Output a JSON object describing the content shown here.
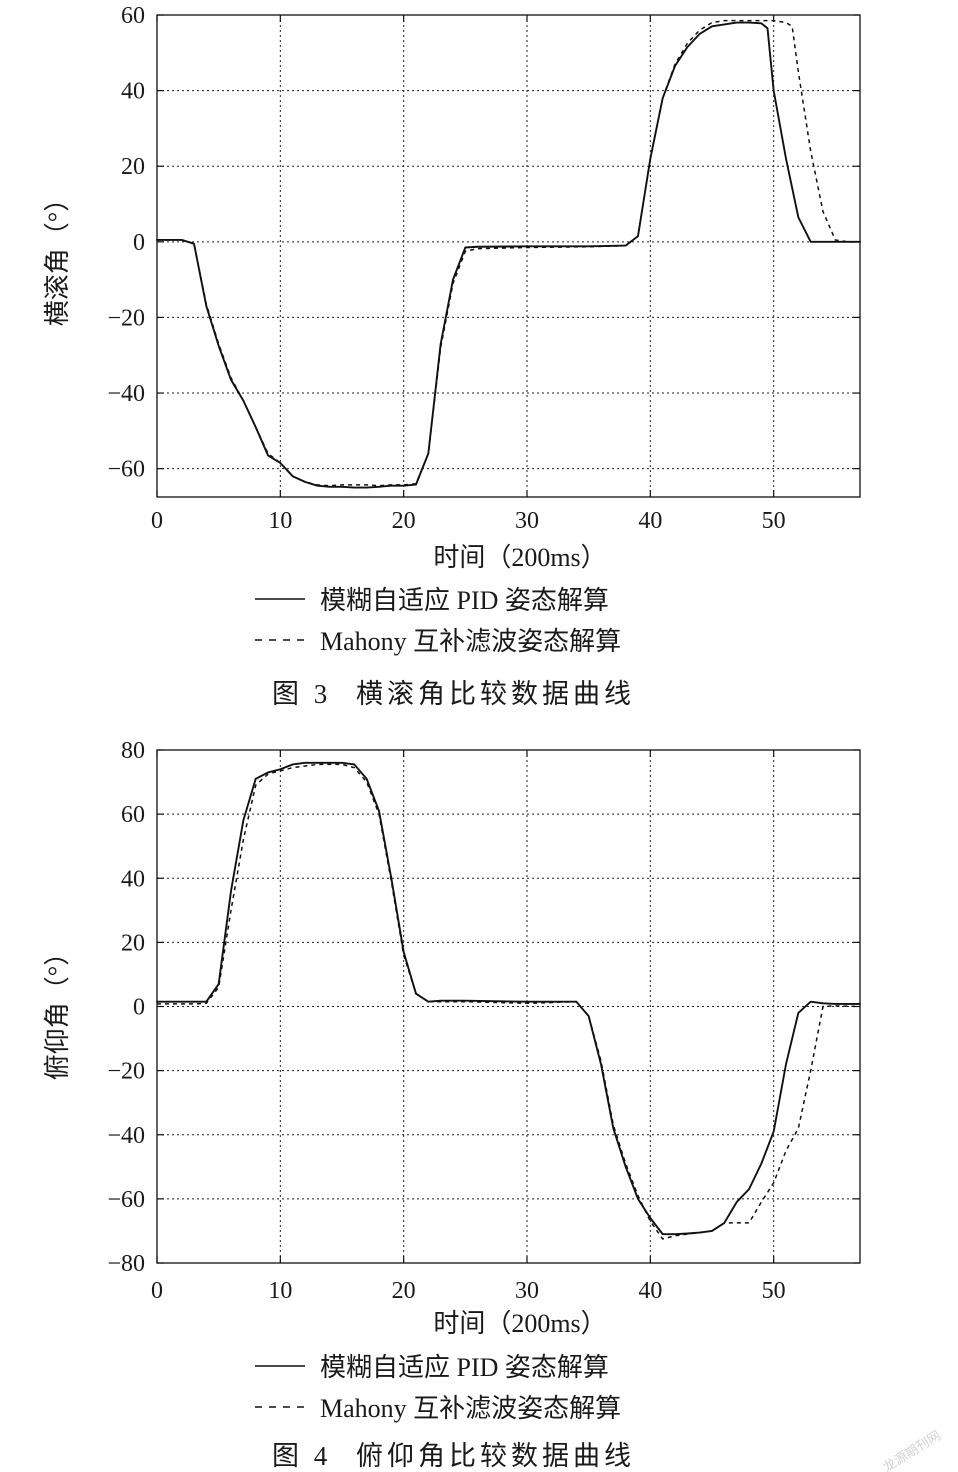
{
  "chart_data": [
    {
      "type": "line",
      "xlabel": "时间（200ms）",
      "ylabel": "横滚角（°）",
      "xlim": [
        0,
        57
      ],
      "ylim": [
        -67.5,
        60
      ],
      "xticks": [
        0,
        10,
        20,
        30,
        40,
        50
      ],
      "yticks": [
        60,
        40,
        20,
        0,
        -20,
        -40,
        -60
      ],
      "grid": true,
      "legend_position": "bottom",
      "caption_label": "图 3",
      "caption": "横滚角比较数据曲线",
      "series": [
        {
          "name": "模糊自适应 PID 姿态解算",
          "dash": "solid",
          "color": "#111111",
          "x": [
            0,
            1,
            2,
            3,
            4,
            5,
            6,
            7,
            8,
            9,
            10,
            11,
            12,
            13,
            14,
            15,
            16,
            17,
            18,
            19,
            20,
            21,
            22,
            23,
            24,
            25,
            26,
            30,
            35,
            38,
            39,
            40,
            41,
            42,
            43,
            44,
            45,
            46,
            47,
            48,
            49,
            49.5,
            50,
            51,
            52,
            53,
            54,
            55,
            56,
            57
          ],
          "y": [
            0.5,
            0.5,
            0.5,
            -0.5,
            -17,
            -27.5,
            -36.5,
            -42,
            -49,
            -56.5,
            -58.5,
            -62,
            -63.5,
            -64.5,
            -64.8,
            -64.8,
            -65,
            -65,
            -64.8,
            -64.5,
            -64.5,
            -64.2,
            -56,
            -27,
            -10,
            -1.5,
            -1.3,
            -1.2,
            -1.2,
            -1,
            1.5,
            22,
            38,
            46.5,
            51.5,
            55,
            57,
            57.5,
            58,
            58,
            57.8,
            56.5,
            40,
            22,
            6.5,
            0,
            0,
            0,
            0,
            0
          ]
        },
        {
          "name": "Mahony 互补滤波姿态解算",
          "dash": "dashed",
          "color": "#111111",
          "x": [
            0,
            1,
            2,
            3,
            4,
            5,
            6,
            7,
            8,
            9,
            10,
            11,
            12,
            13,
            14,
            15,
            16,
            17,
            18,
            19,
            20,
            21,
            22,
            23,
            24,
            25,
            26,
            30,
            35,
            38,
            39,
            40,
            41,
            42,
            43,
            44,
            45,
            46,
            47,
            48,
            49,
            50,
            51,
            51.5,
            52,
            53,
            54,
            55,
            56,
            57
          ],
          "y": [
            0.5,
            0.5,
            0.5,
            -0.5,
            -16.5,
            -27,
            -36,
            -42,
            -49,
            -56,
            -58.5,
            -62,
            -63.5,
            -64.3,
            -64.5,
            -64.3,
            -64.3,
            -64.3,
            -64.5,
            -64.3,
            -64.3,
            -64,
            -56,
            -28,
            -11,
            -2.5,
            -1.8,
            -1.5,
            -1.3,
            -1,
            1.5,
            22,
            38,
            47,
            52.5,
            56,
            58,
            58.5,
            58.5,
            58.5,
            58.5,
            58.5,
            58,
            57,
            45,
            24,
            8,
            0.5,
            0,
            0
          ]
        }
      ]
    },
    {
      "type": "line",
      "xlabel": "时间（200ms）",
      "ylabel": "俯仰角（°）",
      "xlim": [
        0,
        57
      ],
      "ylim": [
        -80,
        80
      ],
      "xticks": [
        0,
        10,
        20,
        30,
        40,
        50
      ],
      "yticks": [
        80,
        60,
        40,
        20,
        0,
        -20,
        -40,
        -60,
        -80
      ],
      "grid": true,
      "legend_position": "bottom",
      "caption_label": "图 4",
      "caption": "俯仰角比较数据曲线",
      "series": [
        {
          "name": "模糊自适应 PID 姿态解算",
          "dash": "solid",
          "color": "#111111",
          "x": [
            0,
            1,
            2,
            3,
            4,
            5,
            6,
            7,
            8,
            9,
            10,
            11,
            12,
            13,
            14,
            15,
            16,
            17,
            18,
            19,
            20,
            21,
            22,
            23,
            25,
            30,
            34,
            35,
            36,
            37,
            38,
            39,
            40,
            41,
            42,
            43,
            44,
            45,
            46,
            47,
            48,
            49,
            50,
            51,
            52,
            53,
            54,
            55,
            57
          ],
          "y": [
            1.5,
            1.5,
            1.5,
            1.5,
            1.5,
            7,
            36,
            58,
            71,
            73,
            74,
            75.5,
            76,
            76,
            76,
            76,
            75.5,
            71,
            61,
            40,
            17,
            4,
            1.5,
            1.8,
            1.8,
            1.5,
            1.5,
            -3,
            -18,
            -38,
            -50,
            -60,
            -66,
            -71,
            -71,
            -70.8,
            -70.5,
            -70,
            -67.5,
            -61,
            -57,
            -49,
            -39,
            -18,
            -2,
            1.5,
            1,
            0.8,
            0.8
          ]
        },
        {
          "name": "Mahony 互补滤波姿态解算",
          "dash": "dashed",
          "color": "#111111",
          "x": [
            0,
            1,
            2,
            3,
            4,
            5,
            6,
            7,
            8,
            9,
            10,
            11,
            12,
            13,
            14,
            15,
            16,
            17,
            18,
            19,
            20,
            21,
            22,
            25,
            30,
            34,
            35,
            36,
            37,
            38,
            39,
            40,
            41,
            42,
            43,
            44,
            45,
            46,
            47,
            48,
            49,
            50,
            51,
            52,
            53,
            54,
            55,
            57
          ],
          "y": [
            0.8,
            0.8,
            0.8,
            0.8,
            1,
            6,
            30,
            52,
            69,
            72.5,
            73.5,
            74.5,
            75,
            75.5,
            75.5,
            75.5,
            74.5,
            70,
            60,
            39,
            16,
            4,
            1.5,
            1.5,
            1,
            1.5,
            -3,
            -17,
            -37,
            -49,
            -59,
            -67,
            -72.5,
            -71.5,
            -71,
            -70.5,
            -70,
            -67.5,
            -67.5,
            -67.5,
            -61,
            -55,
            -45,
            -38,
            -20,
            0,
            0.2,
            0
          ]
        }
      ]
    }
  ],
  "watermark": "龙源期刊网"
}
